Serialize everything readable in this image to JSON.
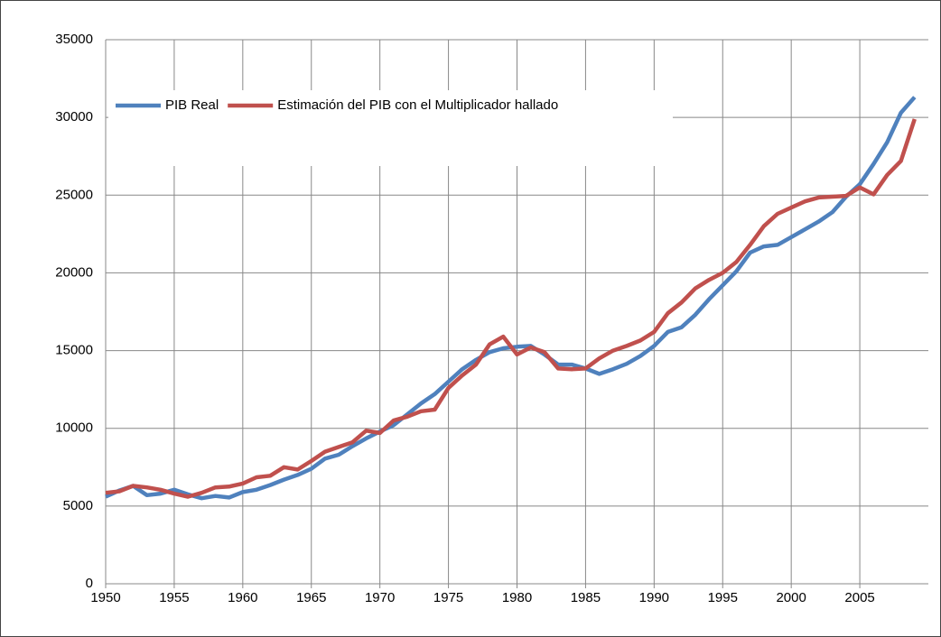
{
  "chart_data": {
    "type": "line",
    "x": [
      1950,
      1951,
      1952,
      1953,
      1954,
      1955,
      1956,
      1957,
      1958,
      1959,
      1960,
      1961,
      1962,
      1963,
      1964,
      1965,
      1966,
      1967,
      1968,
      1969,
      1970,
      1971,
      1972,
      1973,
      1974,
      1975,
      1976,
      1977,
      1978,
      1979,
      1980,
      1981,
      1982,
      1983,
      1984,
      1985,
      1986,
      1987,
      1988,
      1989,
      1990,
      1991,
      1992,
      1993,
      1994,
      1995,
      1996,
      1997,
      1998,
      1999,
      2000,
      2001,
      2002,
      2003,
      2004,
      2005,
      2006,
      2007,
      2008,
      2009
    ],
    "series": [
      {
        "name": "PIB Real",
        "color": "#4f81bd",
        "values": [
          5600,
          6000,
          6300,
          5700,
          5800,
          6050,
          5750,
          5500,
          5650,
          5550,
          5900,
          6050,
          6350,
          6700,
          7000,
          7400,
          8050,
          8300,
          8850,
          9350,
          9800,
          10200,
          10900,
          11600,
          12200,
          13000,
          13800,
          14400,
          14900,
          15150,
          15250,
          15300,
          14750,
          14100,
          14100,
          13850,
          13500,
          13800,
          14150,
          14650,
          15300,
          16200,
          16500,
          17300,
          18300,
          19200,
          20100,
          21300,
          21700,
          21800,
          22300,
          22800,
          23300,
          23900,
          24900,
          25700,
          27000,
          28400,
          30300,
          31300
        ]
      },
      {
        "name": "Estimación del PIB con el Multiplicador hallado",
        "color": "#c0504d",
        "values": [
          5850,
          5950,
          6300,
          6200,
          6050,
          5800,
          5600,
          5850,
          6200,
          6250,
          6450,
          6850,
          6950,
          7500,
          7350,
          7900,
          8500,
          8800,
          9100,
          9850,
          9700,
          10500,
          10750,
          11100,
          11200,
          12600,
          13400,
          14100,
          15400,
          15900,
          14750,
          15200,
          14900,
          13850,
          13800,
          13850,
          14500,
          15000,
          15300,
          15650,
          16200,
          17400,
          18100,
          19000,
          19550,
          20000,
          20700,
          21800,
          23000,
          23800,
          24200,
          24600,
          24850,
          24900,
          24950,
          25500,
          25050,
          26300,
          27200,
          29900
        ]
      }
    ],
    "xlim": [
      1950,
      2010
    ],
    "xticks": [
      1950,
      1955,
      1960,
      1965,
      1970,
      1975,
      1980,
      1985,
      1990,
      1995,
      2000,
      2005
    ],
    "ylim": [
      0,
      35000
    ],
    "yticks": [
      0,
      5000,
      10000,
      15000,
      20000,
      25000,
      30000,
      35000
    ],
    "grid": true
  }
}
